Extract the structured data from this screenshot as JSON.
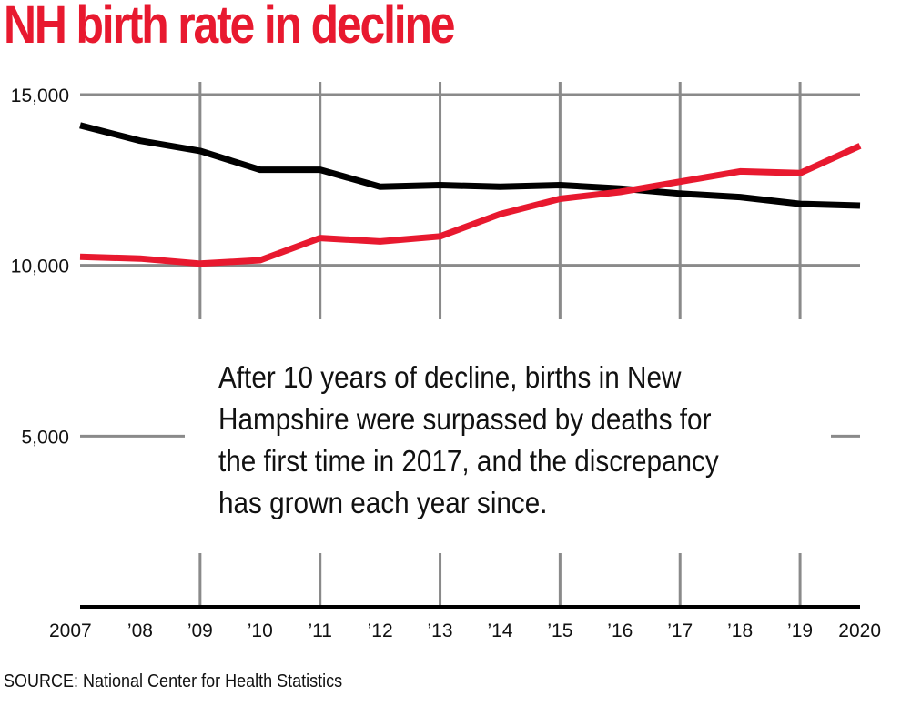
{
  "chart_data": {
    "type": "line",
    "title": "NH birth rate in decline",
    "x_tick_labels": [
      "2007",
      "’08",
      "’09",
      "’10",
      "’11",
      "’12",
      "’13",
      "’14",
      "’15",
      "’16",
      "’17",
      "’18",
      "’19",
      "2020"
    ],
    "y_tick_labels": [
      "15,000",
      "10,000",
      "5,000"
    ],
    "y_ticks": [
      15000,
      10000,
      5000
    ],
    "ylim": [
      0,
      15000
    ],
    "x": [
      2007,
      2008,
      2009,
      2010,
      2011,
      2012,
      2013,
      2014,
      2015,
      2016,
      2017,
      2018,
      2019,
      2020
    ],
    "series": [
      {
        "color": "#000000",
        "values": [
          14100,
          13650,
          13350,
          12800,
          12800,
          12300,
          12350,
          12300,
          12350,
          12250,
          12100,
          12000,
          11800,
          11750
        ]
      },
      {
        "color": "#e8192f",
        "values": [
          10250,
          10200,
          10050,
          10150,
          10800,
          10700,
          10850,
          11500,
          11950,
          12150,
          12450,
          12750,
          12700,
          13500
        ]
      }
    ],
    "grid": true,
    "annotation": "After 10 years of decline, births in New Hampshire were surpassed by deaths for the first time in 2017, and the discrepancy has grown each year since.",
    "source": "SOURCE: National Center for Health Statistics"
  }
}
